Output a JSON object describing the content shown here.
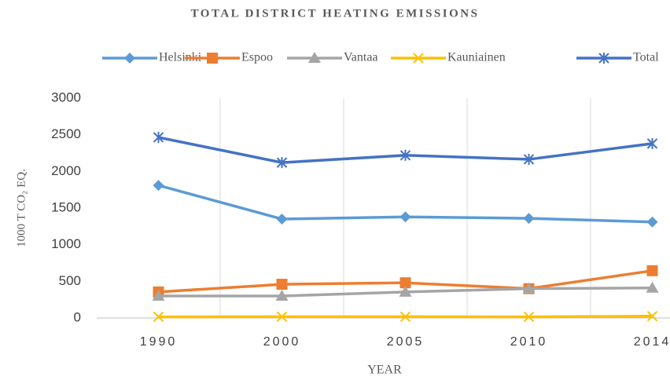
{
  "chart_data": {
    "type": "line",
    "title": "TOTAL DISTRICT HEATING EMISSIONS",
    "x_label": "YEAR",
    "y_label": "1000 T CO₂ EQ.",
    "categories": [
      "1990",
      "2000",
      "2005",
      "2010",
      "2014"
    ],
    "series": [
      {
        "name": "Helsinki",
        "color": "#5b9bd5",
        "marker": "diamond",
        "values": [
          1810,
          1350,
          1380,
          1360,
          1310
        ]
      },
      {
        "name": "Espoo",
        "color": "#ed7d31",
        "marker": "square",
        "values": [
          355,
          460,
          480,
          400,
          645
        ]
      },
      {
        "name": "Vantaa",
        "color": "#a5a5a5",
        "marker": "triangle",
        "values": [
          300,
          300,
          355,
          400,
          410
        ]
      },
      {
        "name": "Kauniainen",
        "color": "#ffc000",
        "marker": "x",
        "values": [
          15,
          18,
          17,
          15,
          25
        ]
      },
      {
        "name": "Total",
        "color": "#4472c4",
        "marker": "star",
        "values": [
          2465,
          2120,
          2220,
          2165,
          2380
        ]
      }
    ],
    "ylim": [
      0,
      3000
    ],
    "yticks": [
      0,
      500,
      1000,
      1500,
      2000,
      2500,
      3000
    ],
    "grid": "x",
    "legend": "top"
  }
}
